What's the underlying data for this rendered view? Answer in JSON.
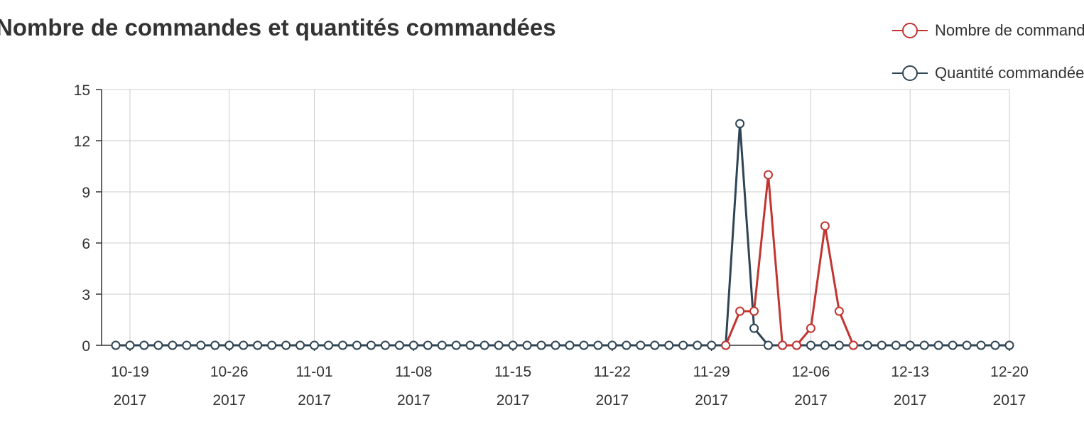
{
  "title": "Nombre de commandes et quantités commandées",
  "legend": {
    "items": [
      {
        "label": "Nombre de commandes",
        "color": "#c23531"
      },
      {
        "label": "Quantité commandée",
        "color": "#2f4554"
      }
    ]
  },
  "chart_data": {
    "type": "line",
    "title": "Nombre de commandes et quantités commandées",
    "xlabel": "",
    "ylabel": "",
    "x_start": "2017-10-17",
    "x_end": "2017-12-20",
    "ylim": [
      0,
      15
    ],
    "yticks": [
      0,
      3,
      6,
      9,
      12,
      15
    ],
    "xticks": [
      {
        "date": "2017-10-19",
        "label": [
          "10-19",
          "2017"
        ]
      },
      {
        "date": "2017-10-26",
        "label": [
          "10-26",
          "2017"
        ]
      },
      {
        "date": "2017-11-01",
        "label": [
          "11-01",
          "2017"
        ]
      },
      {
        "date": "2017-11-08",
        "label": [
          "11-08",
          "2017"
        ]
      },
      {
        "date": "2017-11-15",
        "label": [
          "11-15",
          "2017"
        ]
      },
      {
        "date": "2017-11-22",
        "label": [
          "11-22",
          "2017"
        ]
      },
      {
        "date": "2017-11-29",
        "label": [
          "11-29",
          "2017"
        ]
      },
      {
        "date": "2017-12-06",
        "label": [
          "12-06",
          "2017"
        ]
      },
      {
        "date": "2017-12-13",
        "label": [
          "12-13",
          "2017"
        ]
      },
      {
        "date": "2017-12-20",
        "label": [
          "12-20",
          "2017"
        ]
      }
    ],
    "grid": true,
    "legend_position": "top-right",
    "series": [
      {
        "name": "Nombre de commandes",
        "color": "#c23531",
        "points": [
          [
            "2017-11-30",
            0
          ],
          [
            "2017-12-01",
            2
          ],
          [
            "2017-12-02",
            2
          ],
          [
            "2017-12-03",
            10
          ],
          [
            "2017-12-04",
            0
          ],
          [
            "2017-12-05",
            0
          ],
          [
            "2017-12-06",
            1
          ],
          [
            "2017-12-07",
            7
          ],
          [
            "2017-12-08",
            2
          ],
          [
            "2017-12-09",
            0
          ]
        ]
      },
      {
        "name": "Quantité commandée",
        "color": "#2f4554",
        "points": [
          [
            "2017-10-18",
            0
          ],
          [
            "2017-10-19",
            0
          ],
          [
            "2017-10-20",
            0
          ],
          [
            "2017-10-21",
            0
          ],
          [
            "2017-10-22",
            0
          ],
          [
            "2017-10-23",
            0
          ],
          [
            "2017-10-24",
            0
          ],
          [
            "2017-10-25",
            0
          ],
          [
            "2017-10-26",
            0
          ],
          [
            "2017-10-27",
            0
          ],
          [
            "2017-10-28",
            0
          ],
          [
            "2017-10-29",
            0
          ],
          [
            "2017-10-30",
            0
          ],
          [
            "2017-10-31",
            0
          ],
          [
            "2017-11-01",
            0
          ],
          [
            "2017-11-02",
            0
          ],
          [
            "2017-11-03",
            0
          ],
          [
            "2017-11-04",
            0
          ],
          [
            "2017-11-05",
            0
          ],
          [
            "2017-11-06",
            0
          ],
          [
            "2017-11-07",
            0
          ],
          [
            "2017-11-08",
            0
          ],
          [
            "2017-11-09",
            0
          ],
          [
            "2017-11-10",
            0
          ],
          [
            "2017-11-11",
            0
          ],
          [
            "2017-11-12",
            0
          ],
          [
            "2017-11-13",
            0
          ],
          [
            "2017-11-14",
            0
          ],
          [
            "2017-11-15",
            0
          ],
          [
            "2017-11-16",
            0
          ],
          [
            "2017-11-17",
            0
          ],
          [
            "2017-11-18",
            0
          ],
          [
            "2017-11-19",
            0
          ],
          [
            "2017-11-20",
            0
          ],
          [
            "2017-11-21",
            0
          ],
          [
            "2017-11-22",
            0
          ],
          [
            "2017-11-23",
            0
          ],
          [
            "2017-11-24",
            0
          ],
          [
            "2017-11-25",
            0
          ],
          [
            "2017-11-26",
            0
          ],
          [
            "2017-11-27",
            0
          ],
          [
            "2017-11-28",
            0
          ],
          [
            "2017-11-29",
            0
          ],
          [
            "2017-11-30",
            0
          ],
          [
            "2017-12-01",
            13
          ],
          [
            "2017-12-02",
            1
          ],
          [
            "2017-12-03",
            0
          ],
          [
            "2017-12-04",
            0
          ],
          [
            "2017-12-05",
            0
          ],
          [
            "2017-12-06",
            0
          ],
          [
            "2017-12-07",
            0
          ],
          [
            "2017-12-08",
            0
          ],
          [
            "2017-12-09",
            0
          ],
          [
            "2017-12-10",
            0
          ],
          [
            "2017-12-11",
            0
          ],
          [
            "2017-12-12",
            0
          ],
          [
            "2017-12-13",
            0
          ],
          [
            "2017-12-14",
            0
          ],
          [
            "2017-12-15",
            0
          ],
          [
            "2017-12-16",
            0
          ],
          [
            "2017-12-17",
            0
          ],
          [
            "2017-12-18",
            0
          ],
          [
            "2017-12-19",
            0
          ],
          [
            "2017-12-20",
            0
          ]
        ]
      }
    ]
  }
}
